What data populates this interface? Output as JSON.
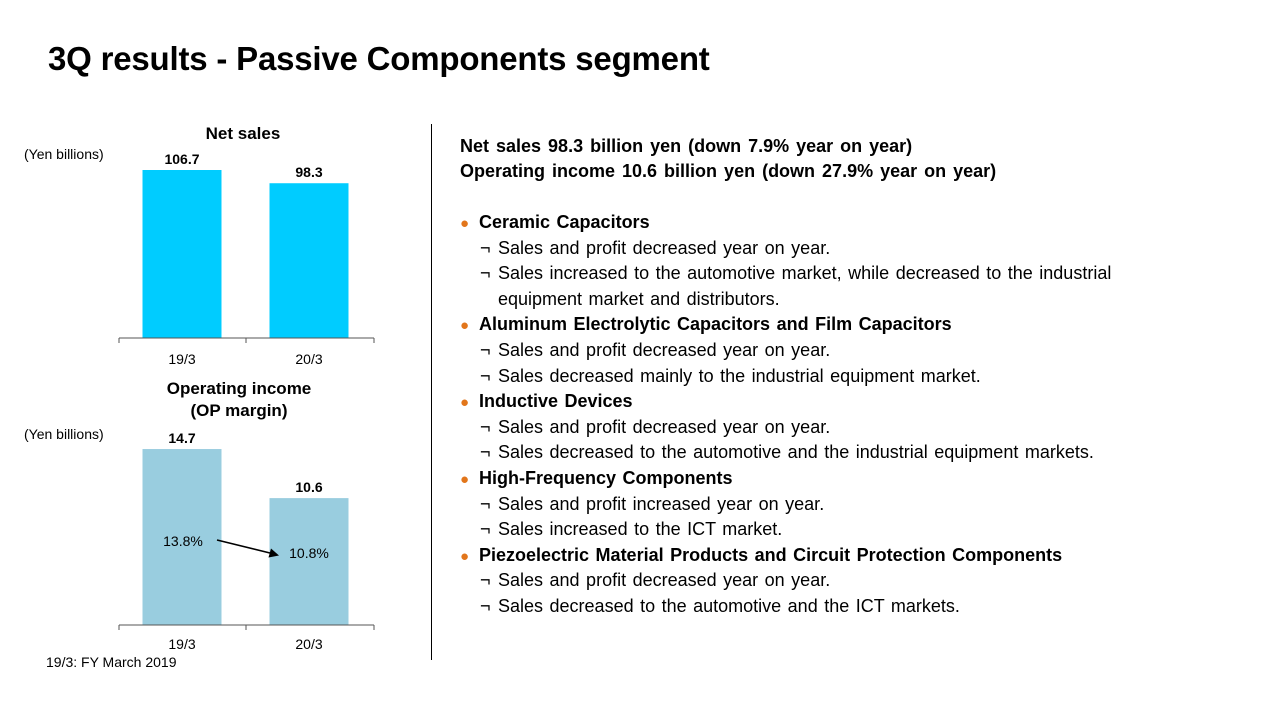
{
  "title": "3Q results - Passive Components segment",
  "footnote": "19/3: FY March 2019",
  "summary": {
    "net_sales": "Net sales  98.3 billion yen (down 7.9% year on year)",
    "operating_income": "Operating income 10.6 billion yen (down 27.9% year on year)"
  },
  "bullet_glyph": "●",
  "point_glyph": "¬",
  "categories": [
    {
      "label": "Ceramic Capacitors",
      "points": [
        "Sales and profit decreased year on year.",
        "Sales increased to the automotive market, while decreased to the industrial",
        "equipment market and distributors."
      ]
    },
    {
      "label": "Aluminum Electrolytic Capacitors and Film Capacitors",
      "points": [
        "Sales and profit decreased year on year.",
        "Sales decreased mainly to the industrial equipment market."
      ]
    },
    {
      "label": "Inductive Devices",
      "points": [
        "Sales and profit decreased year on year.",
        "Sales decreased to the automotive and the industrial equipment markets."
      ]
    },
    {
      "label": "High-Frequency Components",
      "points": [
        "Sales and profit increased year on year.",
        "Sales increased to the ICT market."
      ]
    },
    {
      "label": "Piezoelectric Material Products and Circuit Protection Components",
      "points": [
        "Sales and profit decreased year on year.",
        "Sales decreased to the automotive and the ICT markets."
      ]
    }
  ],
  "colors": {
    "net_sales_bar": "#00ccff",
    "op_income_bar": "#99cddf",
    "bullet": "#e2761b"
  },
  "chart_data": [
    {
      "type": "bar",
      "title": "Net sales",
      "unit_label": "(Yen billions)",
      "categories": [
        "19/3",
        "20/3"
      ],
      "values": [
        106.7,
        98.3
      ],
      "value_labels": [
        "106.7",
        "98.3"
      ]
    },
    {
      "type": "bar",
      "title": [
        "Operating income",
        "(OP margin)"
      ],
      "unit_label": "(Yen billions)",
      "categories": [
        "19/3",
        "20/3"
      ],
      "values": [
        14.7,
        10.6
      ],
      "value_labels": [
        "14.7",
        "10.6"
      ],
      "op_margin_labels": [
        "13.8%",
        "10.8%"
      ],
      "op_margin": [
        13.8,
        10.8
      ]
    }
  ]
}
